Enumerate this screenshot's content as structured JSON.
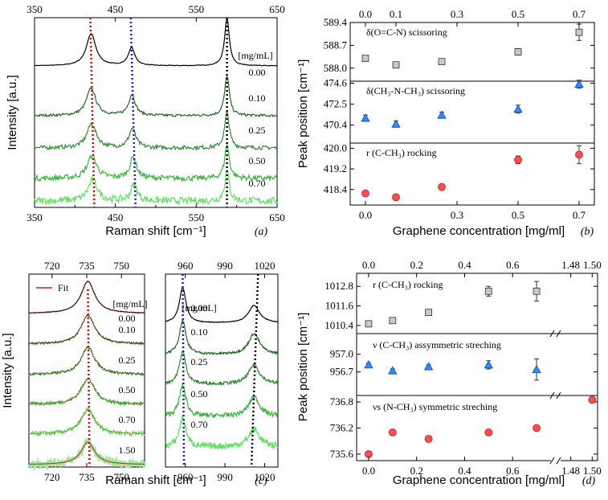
{
  "chart_data": [
    {
      "type": "line",
      "panel": "(a)",
      "xlabel": "Raman shift [cm⁻¹]",
      "ylabel": "Intensity [a.u.]",
      "xlim": [
        350,
        650
      ],
      "xticks": [
        "350",
        "450",
        "550",
        "650"
      ],
      "legend_title": "[mg/mL]",
      "series": [
        {
          "name": "0.00",
          "color": "#000000"
        },
        {
          "name": "0.10",
          "color": "#1e6b1e"
        },
        {
          "name": "0.25",
          "color": "#2e8b2e"
        },
        {
          "name": "0.50",
          "color": "#3cb33c"
        },
        {
          "name": "0.70",
          "color": "#5fe05f"
        }
      ],
      "peaks": [
        420,
        470,
        588
      ],
      "marker_lines": [
        {
          "color": "#e00000",
          "x_top": 419,
          "x_bottom": 424
        },
        {
          "color": "#1a1acc",
          "x_top": 469,
          "x_bottom": 475
        },
        {
          "color": "#000000",
          "x_top": 588,
          "x_bottom": 588
        }
      ]
    },
    {
      "type": "scatter",
      "panel": "(b)",
      "xlabel": "Graphene concentration [mg/ml]",
      "ylabel": "Peak position [cm⁻¹]",
      "xlim": [
        -0.05,
        0.75
      ],
      "xticks": [
        "0.0",
        "0.1",
        "0.3",
        "0.5",
        "0.7"
      ],
      "xticks_bottom": [
        "0.0",
        "0.3",
        "0.5",
        "0.7"
      ],
      "subplots": [
        {
          "label": "δ(O=C-N) scissoring",
          "marker": "square",
          "color": "#c8c8c8",
          "ylim": [
            587.6,
            589.4
          ],
          "yticks": [
            "588.0",
            "588.7",
            "589.4"
          ],
          "x": [
            0,
            0.1,
            0.25,
            0.5,
            0.7
          ],
          "y": [
            588.3,
            588.1,
            588.2,
            588.5,
            589.1
          ],
          "err": [
            0.06,
            0.06,
            0.06,
            0.1,
            0.25
          ]
        },
        {
          "label": "δ(CH₃-N-CH₃) scissoring",
          "marker": "triangle",
          "color": "#2f8cff",
          "ylim": [
            468.6,
            474.8
          ],
          "yticks": [
            "470.4",
            "472.5",
            "474.6"
          ],
          "x": [
            0,
            0.1,
            0.25,
            0.5,
            0.7
          ],
          "y": [
            471.1,
            470.5,
            471.4,
            472.0,
            474.5
          ],
          "err": [
            0.3,
            0.3,
            0.3,
            0.4,
            0.4
          ]
        },
        {
          "label": "r (C-CH₃) rocking",
          "marker": "circle",
          "color": "#ff4d4d",
          "ylim": [
            417.8,
            420.2
          ],
          "yticks": [
            "418.4",
            "419.2",
            "420.0"
          ],
          "x": [
            0,
            0.1,
            0.25,
            0.5,
            0.7
          ],
          "y": [
            418.25,
            418.1,
            418.5,
            419.55,
            419.75
          ],
          "err": [
            0.05,
            0.05,
            0.07,
            0.15,
            0.35
          ]
        }
      ]
    },
    {
      "type": "line",
      "panel": "(c)",
      "xlabel": "Raman shift [cm⁻¹]",
      "ylabel": "Intensity [a.u.]",
      "left_xlim": [
        710,
        760
      ],
      "left_xticks": [
        "720",
        "735",
        "750"
      ],
      "right_xlim": [
        945,
        1030
      ],
      "right_xticks": [
        "960",
        "990",
        "1020"
      ],
      "legend_title": "[mg/mL]",
      "fit_label": "Fit",
      "left_series": [
        {
          "name": "0.00",
          "color": "#000000"
        },
        {
          "name": "0.10",
          "color": "#1e6b1e"
        },
        {
          "name": "0.25",
          "color": "#2e8b2e"
        },
        {
          "name": "0.50",
          "color": "#3cb33c"
        },
        {
          "name": "0.70",
          "color": "#5fe05f"
        },
        {
          "name": "1.50",
          "color": "#9ee89e"
        }
      ],
      "right_series": [
        {
          "name": "0.00",
          "color": "#000000"
        },
        {
          "name": "0.10",
          "color": "#1e6b1e"
        },
        {
          "name": "0.25",
          "color": "#2e8b2e"
        },
        {
          "name": "0.50",
          "color": "#3cb33c"
        },
        {
          "name": "0.70",
          "color": "#5fe05f"
        }
      ],
      "peaks_left": [
        735.5
      ],
      "peaks_right": [
        958,
        1012
      ]
    },
    {
      "type": "scatter",
      "panel": "(d)",
      "xlabel": "Graphene concentration [mg/ml]",
      "ylabel": "Peak position [cm⁻¹]",
      "xticks": [
        "0.0",
        "0.2",
        "0.4",
        "0.6",
        "1.48",
        "1.50"
      ],
      "subplots": [
        {
          "label": "r (C-CH₃) rocking",
          "marker": "square",
          "color": "#c8c8c8",
          "ylim": [
            1009.9,
            1013.6
          ],
          "yticks": [
            "1010.4",
            "1011.6",
            "1012.8"
          ],
          "x": [
            0,
            0.1,
            0.25,
            0.5,
            0.7
          ],
          "y": [
            1010.5,
            1010.7,
            1011.2,
            1012.5,
            1012.5
          ],
          "err": [
            0.08,
            0.08,
            0.1,
            0.3,
            0.6
          ]
        },
        {
          "label": "ν (C-CH₃) assymmetric streching",
          "marker": "triangle",
          "color": "#2f8cff",
          "ylim": [
            956.3,
            957.35
          ],
          "yticks": [
            "956.7",
            "957.0"
          ],
          "x": [
            0,
            0.1,
            0.25,
            0.5,
            0.7
          ],
          "y": [
            956.82,
            956.72,
            956.79,
            956.82,
            956.74
          ],
          "err": [
            0.03,
            0.03,
            0.03,
            0.07,
            0.18
          ]
        },
        {
          "label": "νs (N-CH₃) symmetric streching",
          "marker": "circle",
          "color": "#ff4d4d",
          "ylim": [
            735.45,
            736.95
          ],
          "yticks": [
            "735.6",
            "736.2",
            "736.8"
          ],
          "x": [
            0,
            0.1,
            0.25,
            0.5,
            0.7,
            1.5
          ],
          "y": [
            735.6,
            736.1,
            735.95,
            736.1,
            736.2,
            736.85
          ],
          "err": [
            0.03,
            0.03,
            0.03,
            0.03,
            0.03,
            0.03
          ]
        }
      ]
    }
  ]
}
